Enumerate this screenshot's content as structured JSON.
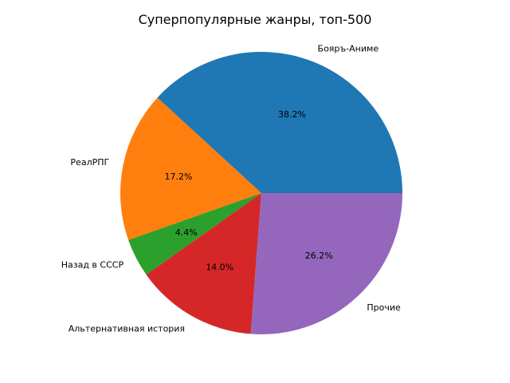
{
  "chart_data": {
    "type": "pie",
    "title": "Суперпопулярные жанры, топ-500",
    "slices": [
      {
        "label": "Бояръ-Аниме",
        "percent": 38.2,
        "percent_label": "38.2%",
        "color": "#1f77b4"
      },
      {
        "label": "РеалРПГ",
        "percent": 17.2,
        "percent_label": "17.2%",
        "color": "#ff7f0e"
      },
      {
        "label": "Назад в СССР",
        "percent": 4.4,
        "percent_label": "4.4%",
        "color": "#2ca02c"
      },
      {
        "label": "Альтернативная история",
        "percent": 14.0,
        "percent_label": "14.0%",
        "color": "#d62728"
      },
      {
        "label": "Прочие",
        "percent": 26.2,
        "percent_label": "26.2%",
        "color": "#9467bd"
      }
    ],
    "start_angle": "0° (east), counter-clockwise",
    "legend": "none"
  }
}
